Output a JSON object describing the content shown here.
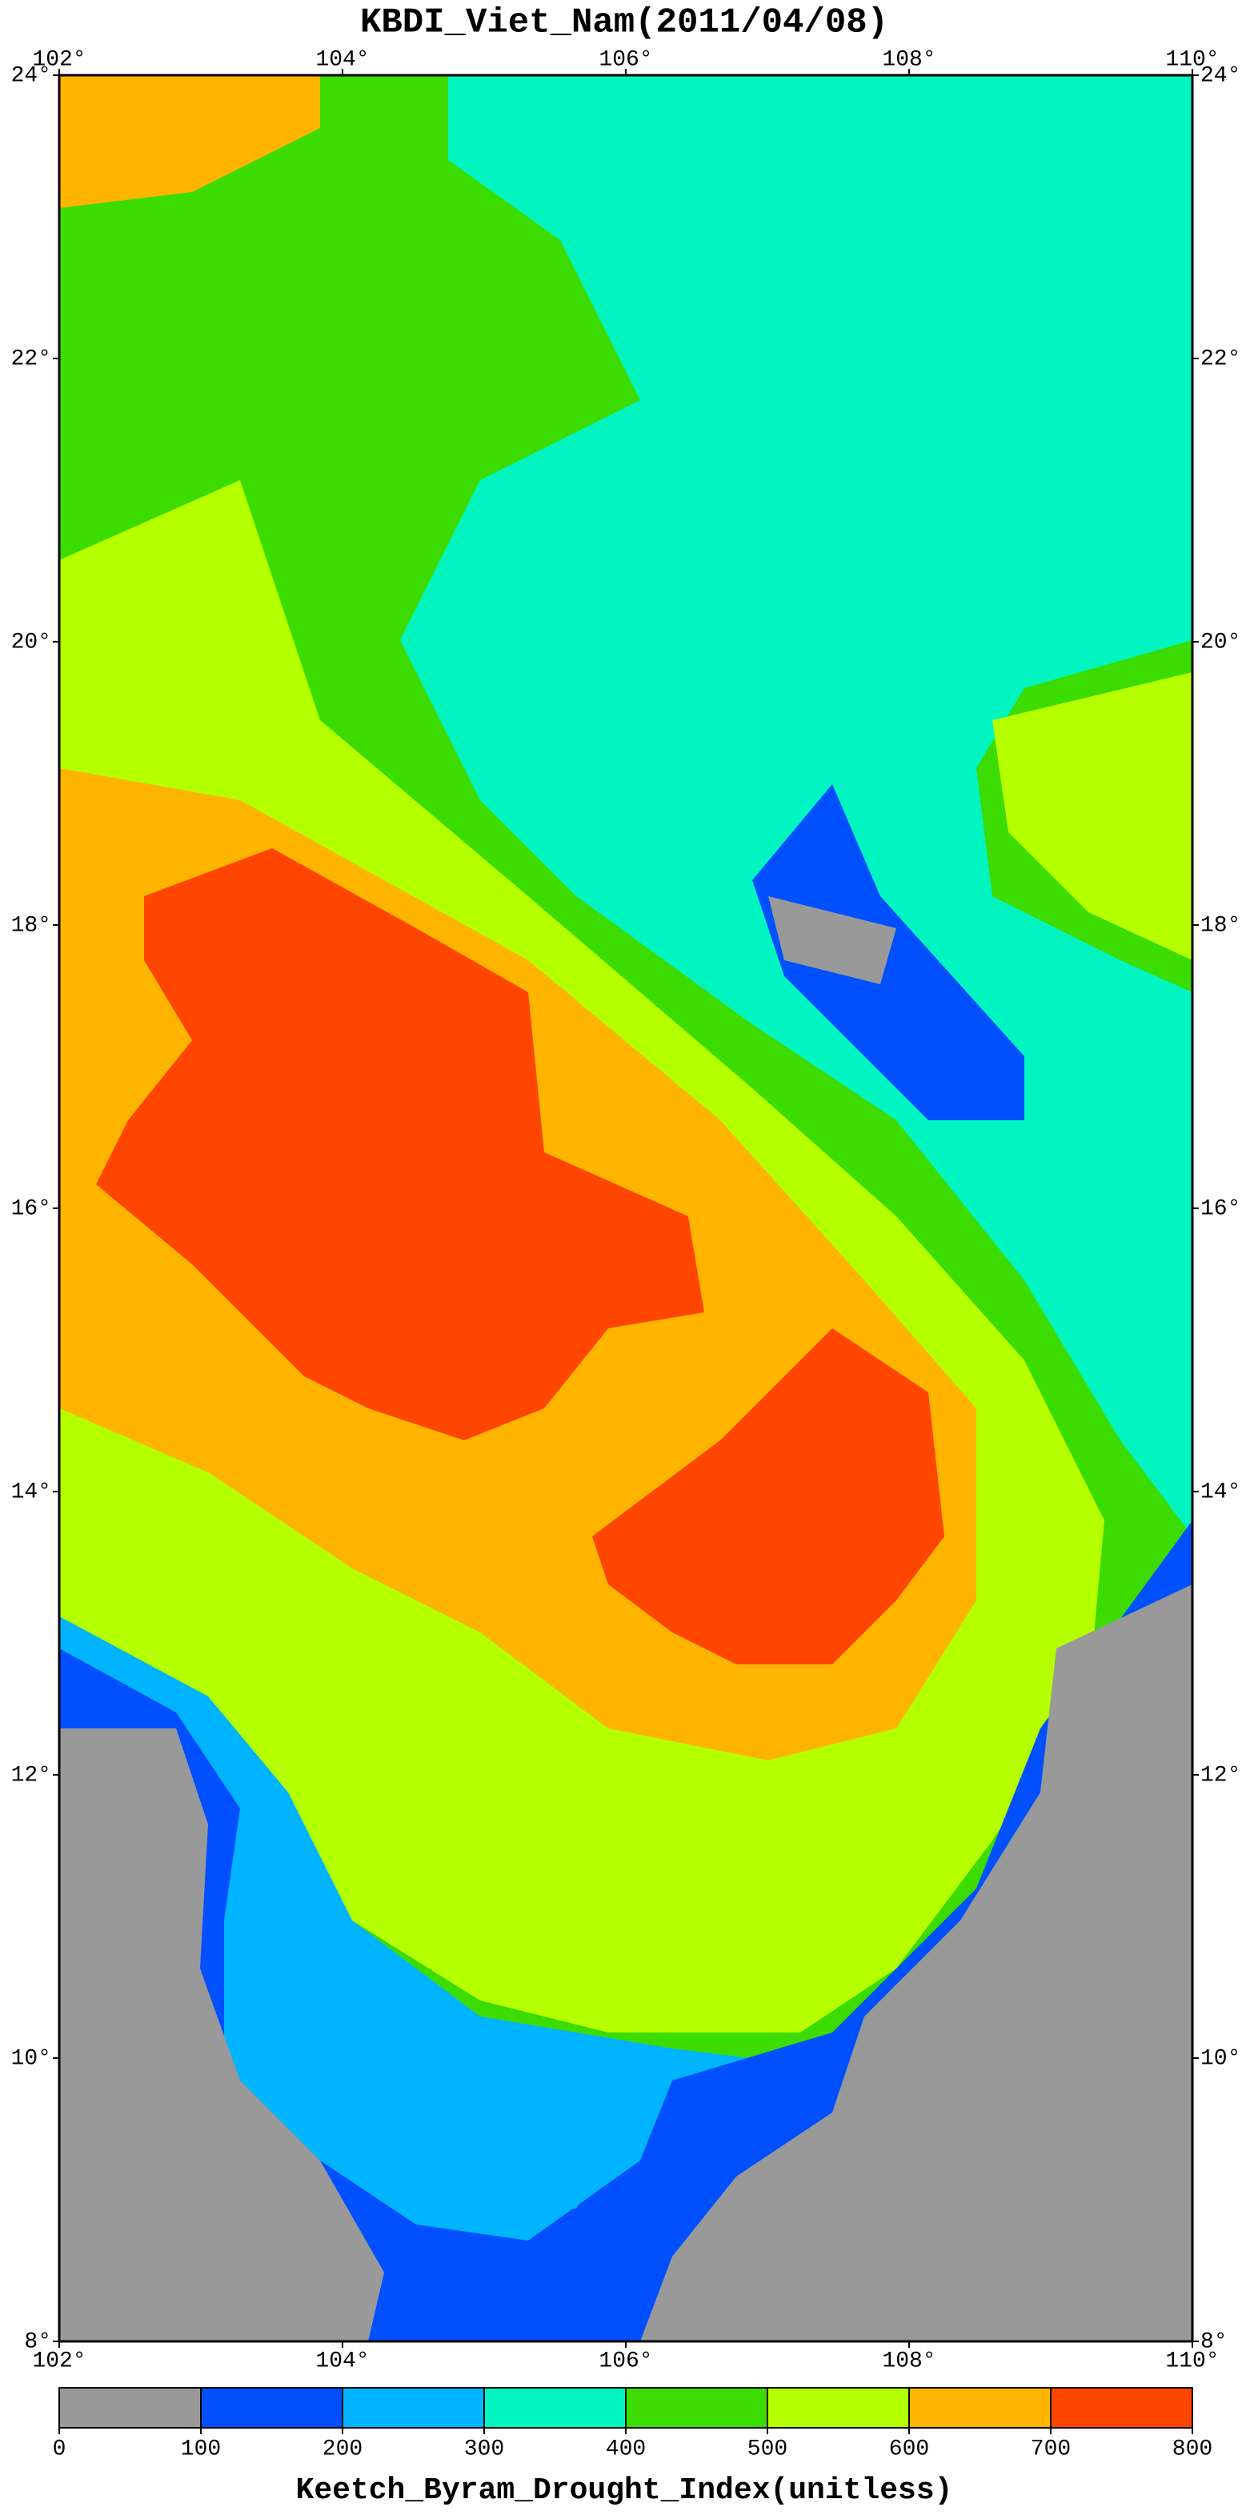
{
  "title": "KBDI_Viet_Nam(2011/04/08)",
  "map": {
    "lon_range": [
      102,
      110
    ],
    "lat_range": [
      8,
      24
    ],
    "lon_ticks": [
      {
        "value": 102,
        "label": "102°"
      },
      {
        "value": 104,
        "label": "104°"
      },
      {
        "value": 106,
        "label": "106°"
      },
      {
        "value": 108,
        "label": "108°"
      },
      {
        "value": 110,
        "label": "110°"
      }
    ],
    "lat_ticks": [
      {
        "value": 8,
        "label": "8°"
      },
      {
        "value": 10,
        "label": "10°"
      },
      {
        "value": 12,
        "label": "12°"
      },
      {
        "value": 14,
        "label": "14°"
      },
      {
        "value": 16,
        "label": "16°"
      },
      {
        "value": 18,
        "label": "18°"
      },
      {
        "value": 20,
        "label": "20°"
      },
      {
        "value": 22,
        "label": "22°"
      },
      {
        "value": 24,
        "label": "24°"
      }
    ]
  },
  "colorbar": {
    "label": "Keetch_Byram_Drought_Index(unitless)",
    "levels": [
      0,
      100,
      200,
      300,
      400,
      500,
      600,
      700,
      800
    ],
    "colors": [
      "#999999",
      "#0050ff",
      "#00b4ff",
      "#00f5c0",
      "#3cdc00",
      "#b4ff00",
      "#ffb400",
      "#ff4600"
    ]
  }
}
